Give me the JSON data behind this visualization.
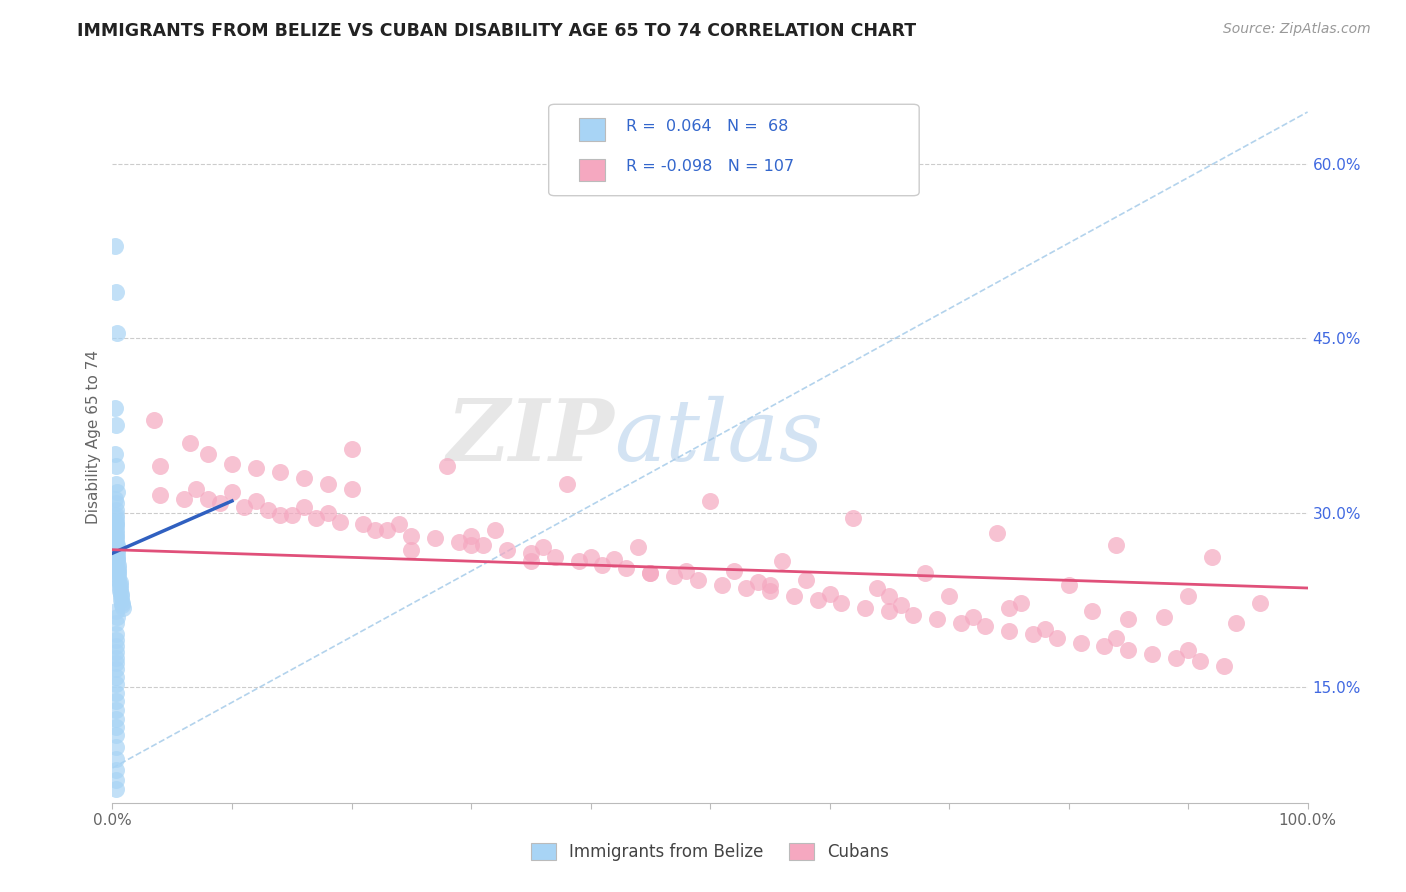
{
  "title": "IMMIGRANTS FROM BELIZE VS CUBAN DISABILITY AGE 65 TO 74 CORRELATION CHART",
  "source_text": "Source: ZipAtlas.com",
  "ylabel": "Disability Age 65 to 74",
  "xlim": [
    0.0,
    1.0
  ],
  "ylim": [
    0.05,
    0.68
  ],
  "xtick_positions": [
    0.0,
    0.1,
    0.2,
    0.3,
    0.4,
    0.5,
    0.6,
    0.7,
    0.8,
    0.9,
    1.0
  ],
  "xtick_labels": [
    "0.0%",
    "",
    "",
    "",
    "",
    "",
    "",
    "",
    "",
    "",
    "100.0%"
  ],
  "ytick_labels": [
    "15.0%",
    "30.0%",
    "45.0%",
    "60.0%"
  ],
  "ytick_positions": [
    0.15,
    0.3,
    0.45,
    0.6
  ],
  "r_belize": 0.064,
  "n_belize": 68,
  "r_cuban": -0.098,
  "n_cuban": 107,
  "color_belize": "#a8d4f5",
  "color_cuban": "#f5a8c0",
  "color_belize_line": "#3060c0",
  "color_cuban_line": "#e0507a",
  "color_dash": "#a8d4f5",
  "legend_label_belize": "Immigrants from Belize",
  "legend_label_cuban": "Cubans",
  "watermark_zip": "ZIP",
  "watermark_atlas": "atlas",
  "background_color": "#ffffff",
  "grid_color": "#cccccc",
  "belize_x": [
    0.002,
    0.003,
    0.004,
    0.002,
    0.003,
    0.002,
    0.003,
    0.003,
    0.004,
    0.002,
    0.003,
    0.003,
    0.003,
    0.003,
    0.003,
    0.003,
    0.003,
    0.003,
    0.003,
    0.003,
    0.003,
    0.003,
    0.004,
    0.004,
    0.004,
    0.004,
    0.004,
    0.004,
    0.004,
    0.005,
    0.005,
    0.005,
    0.005,
    0.005,
    0.005,
    0.006,
    0.006,
    0.006,
    0.006,
    0.007,
    0.007,
    0.007,
    0.008,
    0.008,
    0.009,
    0.003,
    0.004,
    0.003,
    0.003,
    0.003,
    0.003,
    0.003,
    0.003,
    0.003,
    0.003,
    0.003,
    0.003,
    0.003,
    0.003,
    0.003,
    0.003,
    0.003,
    0.003,
    0.003,
    0.003,
    0.003,
    0.003,
    0.003
  ],
  "belize_y": [
    0.53,
    0.49,
    0.455,
    0.39,
    0.375,
    0.35,
    0.34,
    0.325,
    0.318,
    0.312,
    0.308,
    0.302,
    0.298,
    0.295,
    0.292,
    0.29,
    0.288,
    0.285,
    0.282,
    0.28,
    0.278,
    0.275,
    0.272,
    0.27,
    0.268,
    0.265,
    0.262,
    0.26,
    0.258,
    0.255,
    0.252,
    0.25,
    0.248,
    0.245,
    0.242,
    0.24,
    0.238,
    0.235,
    0.232,
    0.23,
    0.228,
    0.225,
    0.222,
    0.22,
    0.218,
    0.215,
    0.21,
    0.205,
    0.195,
    0.19,
    0.185,
    0.18,
    0.175,
    0.17,
    0.165,
    0.158,
    0.152,
    0.145,
    0.138,
    0.13,
    0.122,
    0.115,
    0.108,
    0.098,
    0.088,
    0.078,
    0.07,
    0.062
  ],
  "cuban_x": [
    0.035,
    0.065,
    0.08,
    0.1,
    0.12,
    0.14,
    0.16,
    0.18,
    0.2,
    0.04,
    0.06,
    0.09,
    0.11,
    0.13,
    0.15,
    0.17,
    0.19,
    0.21,
    0.23,
    0.25,
    0.27,
    0.29,
    0.31,
    0.33,
    0.35,
    0.37,
    0.39,
    0.41,
    0.43,
    0.45,
    0.47,
    0.49,
    0.51,
    0.53,
    0.55,
    0.57,
    0.59,
    0.61,
    0.63,
    0.65,
    0.67,
    0.69,
    0.71,
    0.73,
    0.75,
    0.77,
    0.79,
    0.81,
    0.83,
    0.85,
    0.87,
    0.89,
    0.91,
    0.93,
    0.04,
    0.07,
    0.12,
    0.18,
    0.24,
    0.3,
    0.36,
    0.42,
    0.48,
    0.54,
    0.6,
    0.66,
    0.72,
    0.78,
    0.84,
    0.9,
    0.2,
    0.28,
    0.38,
    0.5,
    0.62,
    0.74,
    0.84,
    0.92,
    0.25,
    0.35,
    0.45,
    0.55,
    0.65,
    0.75,
    0.85,
    0.08,
    0.14,
    0.22,
    0.3,
    0.4,
    0.52,
    0.58,
    0.64,
    0.7,
    0.76,
    0.82,
    0.88,
    0.94,
    0.1,
    0.16,
    0.32,
    0.44,
    0.56,
    0.68,
    0.8,
    0.9,
    0.96
  ],
  "cuban_y": [
    0.38,
    0.36,
    0.35,
    0.342,
    0.338,
    0.335,
    0.33,
    0.325,
    0.32,
    0.315,
    0.312,
    0.308,
    0.305,
    0.302,
    0.298,
    0.295,
    0.292,
    0.29,
    0.285,
    0.28,
    0.278,
    0.275,
    0.272,
    0.268,
    0.265,
    0.262,
    0.258,
    0.255,
    0.252,
    0.248,
    0.245,
    0.242,
    0.238,
    0.235,
    0.232,
    0.228,
    0.225,
    0.222,
    0.218,
    0.215,
    0.212,
    0.208,
    0.205,
    0.202,
    0.198,
    0.195,
    0.192,
    0.188,
    0.185,
    0.182,
    0.178,
    0.175,
    0.172,
    0.168,
    0.34,
    0.32,
    0.31,
    0.3,
    0.29,
    0.28,
    0.27,
    0.26,
    0.25,
    0.24,
    0.23,
    0.22,
    0.21,
    0.2,
    0.192,
    0.182,
    0.355,
    0.34,
    0.325,
    0.31,
    0.295,
    0.282,
    0.272,
    0.262,
    0.268,
    0.258,
    0.248,
    0.238,
    0.228,
    0.218,
    0.208,
    0.312,
    0.298,
    0.285,
    0.272,
    0.262,
    0.25,
    0.242,
    0.235,
    0.228,
    0.222,
    0.215,
    0.21,
    0.205,
    0.318,
    0.305,
    0.285,
    0.27,
    0.258,
    0.248,
    0.238,
    0.228,
    0.222
  ],
  "belize_line_x": [
    0.0,
    0.1
  ],
  "belize_line_y": [
    0.265,
    0.31
  ],
  "cuban_line_x": [
    0.0,
    1.0
  ],
  "cuban_line_y": [
    0.268,
    0.235
  ],
  "dash_line_x": [
    0.0,
    1.0
  ],
  "dash_line_y": [
    0.08,
    0.645
  ]
}
